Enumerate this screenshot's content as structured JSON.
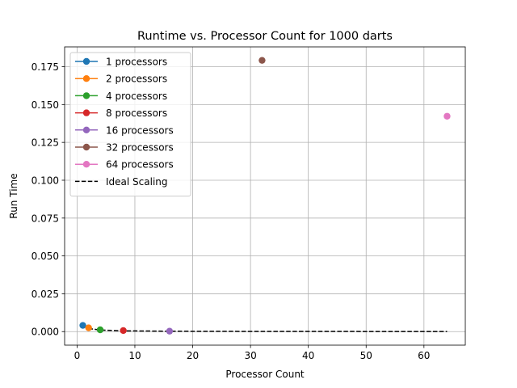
{
  "chart_data": {
    "type": "scatter",
    "title": "Runtime vs. Processor Count for 1000 darts",
    "xlabel": "Processor Count",
    "ylabel": "Run Time",
    "xlim": [
      -2.15,
      67.15
    ],
    "ylim": [
      -0.00895,
      0.1881
    ],
    "xticks": [
      0,
      10,
      20,
      30,
      40,
      50,
      60
    ],
    "xtick_labels": [
      "0",
      "10",
      "20",
      "30",
      "40",
      "50",
      "60"
    ],
    "yticks": [
      0.0,
      0.025,
      0.05,
      0.075,
      0.1,
      0.125,
      0.15,
      0.175
    ],
    "ytick_labels": [
      "0.000",
      "0.025",
      "0.050",
      "0.075",
      "0.100",
      "0.125",
      "0.150",
      "0.175"
    ],
    "grid": true,
    "legend_position": "upper-left",
    "series": [
      {
        "name": "1 processors",
        "color": "#1f77b4",
        "x": [
          1
        ],
        "y": [
          0.0041
        ]
      },
      {
        "name": "2 processors",
        "color": "#ff7f0e",
        "x": [
          2
        ],
        "y": [
          0.0025
        ]
      },
      {
        "name": "4 processors",
        "color": "#2ca02c",
        "x": [
          4
        ],
        "y": [
          0.0012
        ]
      },
      {
        "name": "8 processors",
        "color": "#d62728",
        "x": [
          8
        ],
        "y": [
          0.0007
        ]
      },
      {
        "name": "16 processors",
        "color": "#9467bd",
        "x": [
          16
        ],
        "y": [
          0.0003
        ]
      },
      {
        "name": "32 processors",
        "color": "#8c564b",
        "x": [
          32
        ],
        "y": [
          0.1792
        ]
      },
      {
        "name": "64 processors",
        "color": "#e377c2",
        "x": [
          64
        ],
        "y": [
          0.1423
        ]
      }
    ],
    "ideal_scaling": {
      "name": "Ideal Scaling",
      "color": "#000000",
      "style": "dashed",
      "x": [
        1,
        2,
        4,
        8,
        16,
        32,
        64
      ],
      "y": [
        0.0041,
        0.00205,
        0.001025,
        0.000513,
        0.000256,
        0.000128,
        6.4e-05
      ]
    }
  }
}
